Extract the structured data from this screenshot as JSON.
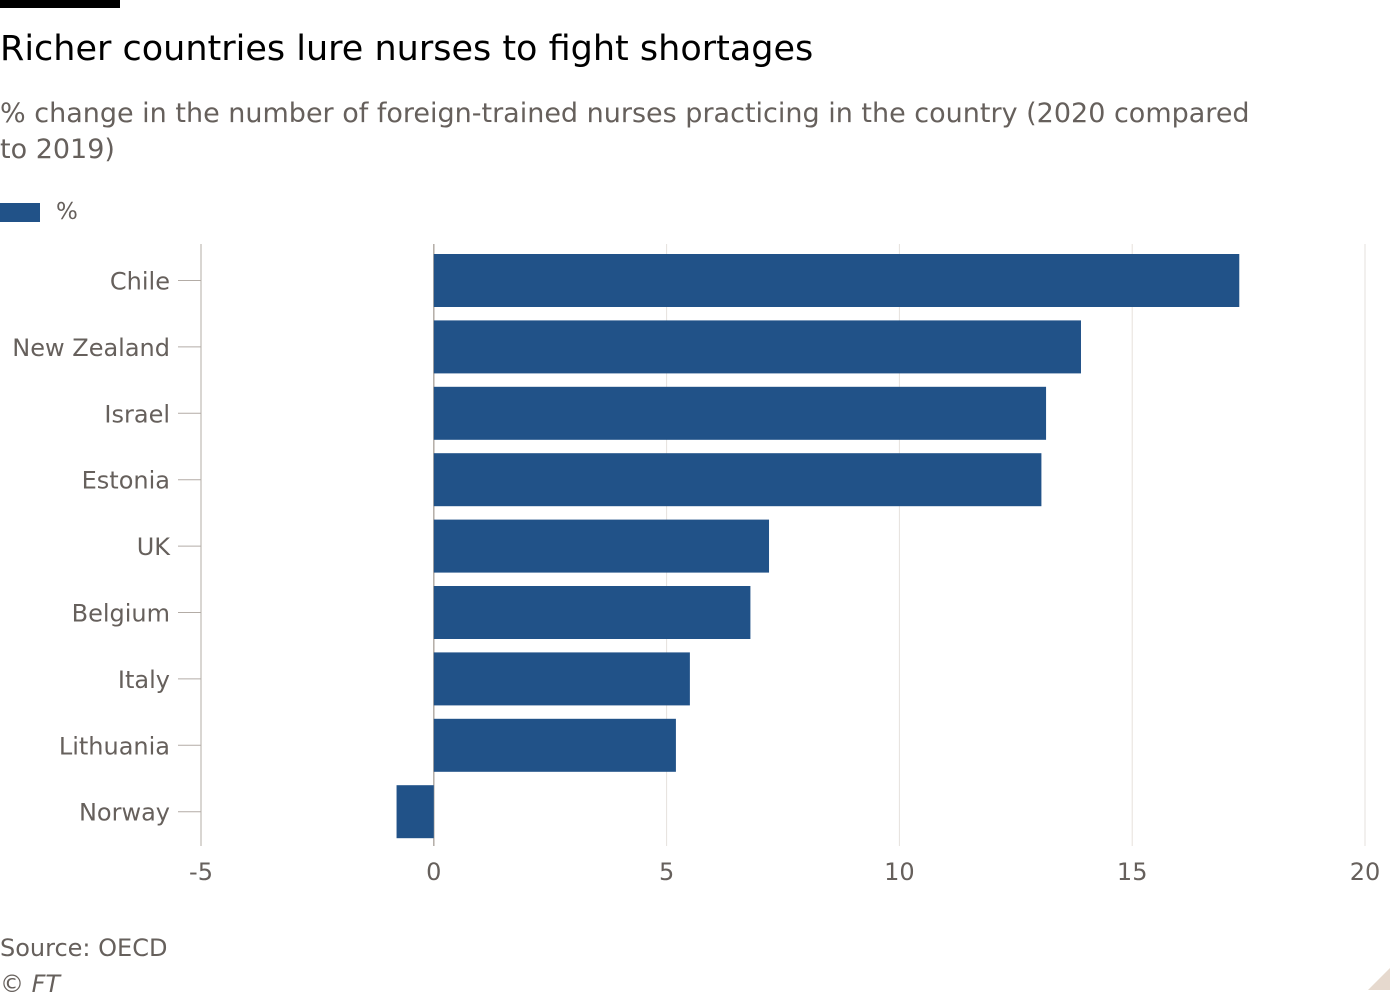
{
  "header": {
    "title": "Richer countries lure nurses to fight shortages",
    "subtitle": "% change in the number of foreign-trained nurses practicing in the country (2020 compared to 2019)"
  },
  "legend": {
    "label": "%",
    "color": "#215288"
  },
  "chart_data": {
    "type": "bar",
    "orientation": "horizontal",
    "categories": [
      "Chile",
      "New Zealand",
      "Israel",
      "Estonia",
      "UK",
      "Belgium",
      "Italy",
      "Lithuania",
      "Norway"
    ],
    "series": [
      {
        "name": "%",
        "values": [
          17.3,
          13.9,
          13.15,
          13.05,
          7.2,
          6.8,
          5.5,
          5.2,
          -0.8
        ],
        "color": "#215288"
      }
    ],
    "xlim": [
      -5,
      20
    ],
    "xticks": [
      -5,
      0,
      5,
      10,
      15,
      20
    ],
    "xlabel": "",
    "ylabel": "",
    "grid": "vertical",
    "legend_position": "top-left"
  },
  "footer": {
    "source": "Source: OECD",
    "copyright": "© FT"
  }
}
